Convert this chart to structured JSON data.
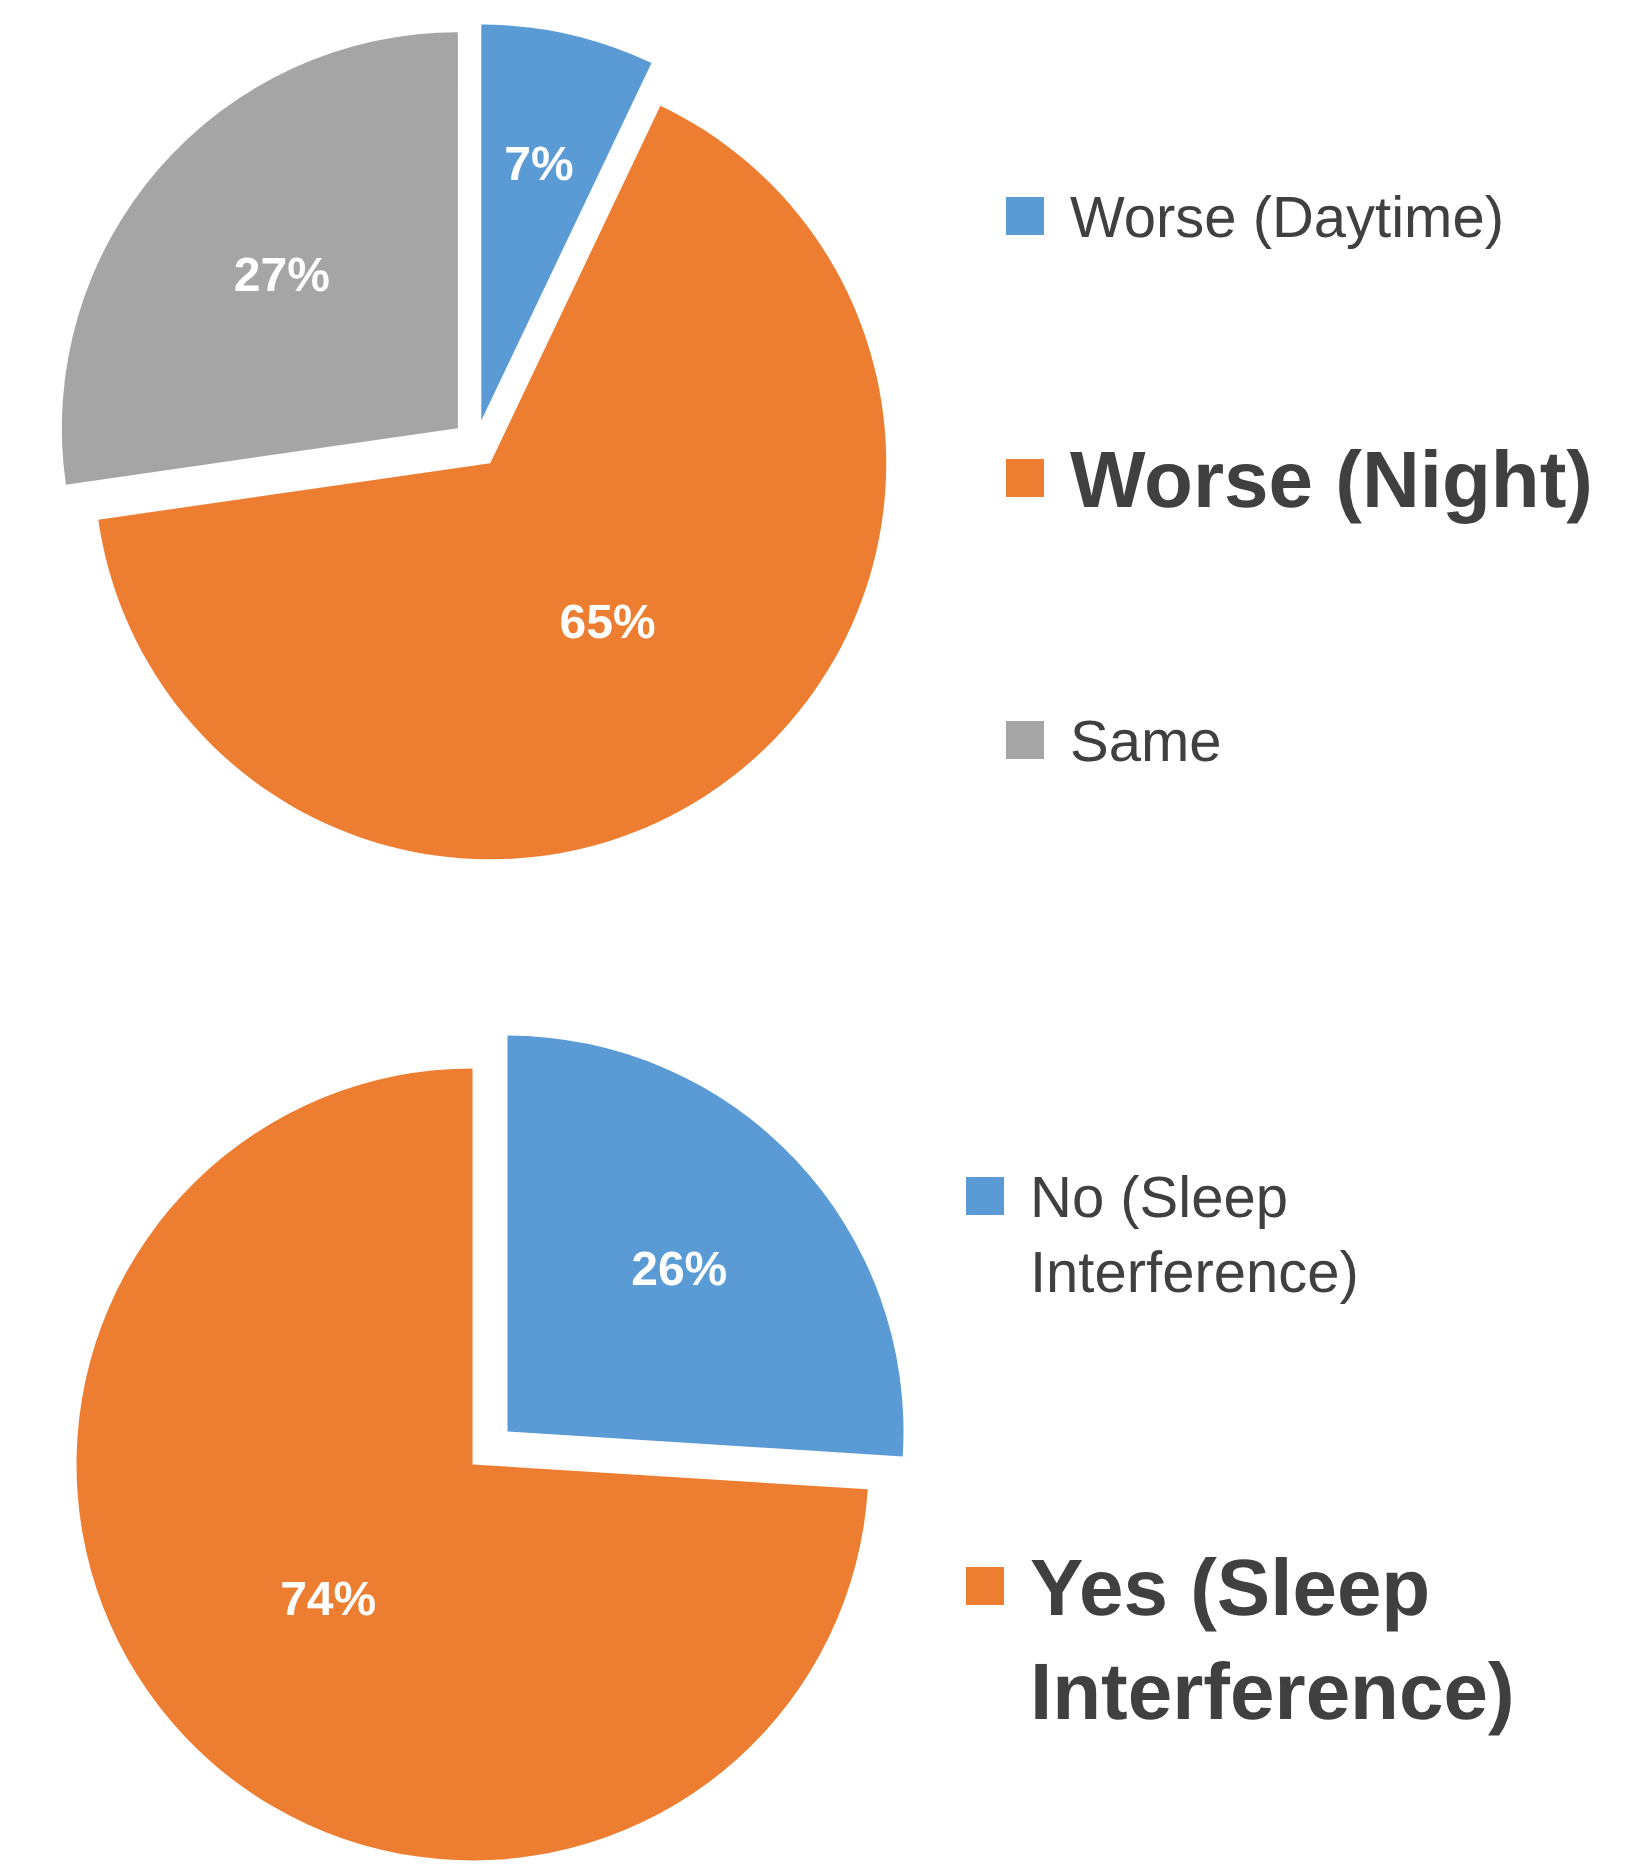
{
  "chart_data": [
    {
      "type": "pie",
      "categories": [
        "Worse (Daytime)",
        "Worse (Night)",
        "Same"
      ],
      "values": [
        7,
        65,
        27
      ],
      "colors": [
        "#5b9bd5",
        "#ed7d31",
        "#a5a5a5"
      ],
      "value_labels": [
        "7%",
        "65%",
        "27%"
      ],
      "legend": "right"
    },
    {
      "type": "pie",
      "categories": [
        "No (Sleep Interference)",
        "Yes (Sleep Interference)"
      ],
      "values": [
        26,
        74
      ],
      "colors": [
        "#5b9bd5",
        "#ed7d31"
      ],
      "value_labels": [
        "26%",
        "74%"
      ],
      "legend": "right"
    }
  ]
}
